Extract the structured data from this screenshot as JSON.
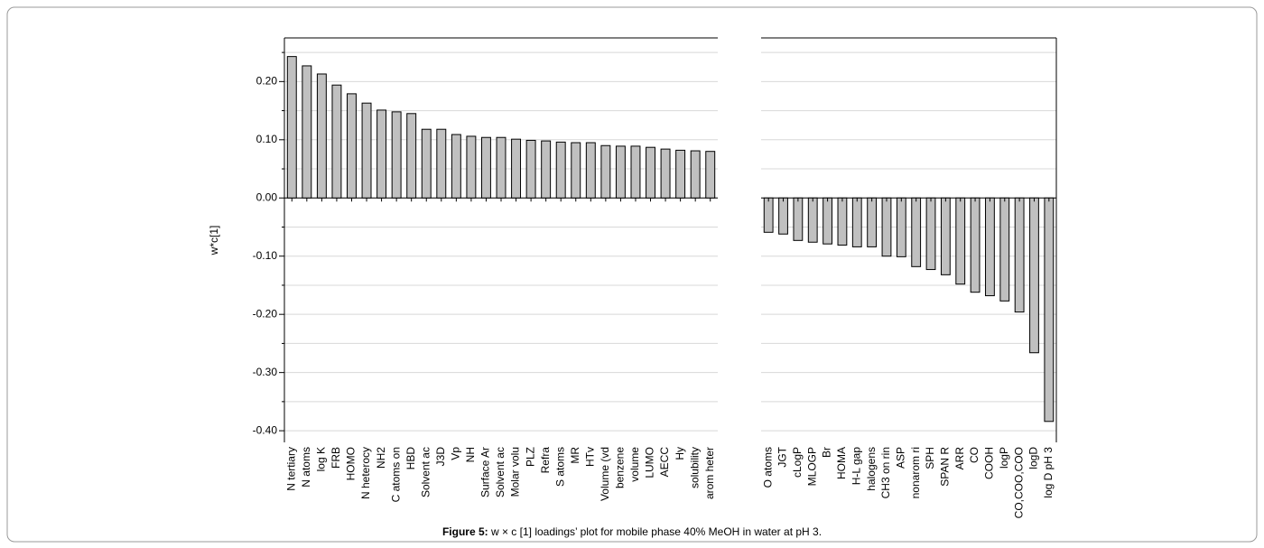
{
  "chart_data": {
    "type": "bar",
    "ylabel": "w*c[1]",
    "caption_label": "Figure 5:",
    "caption": "w × c [1] loadings’ plot for mobile phase 40% MeOH in water at pH 3.",
    "ylim": [
      -0.42,
      0.275
    ],
    "yticks": [
      {
        "value": 0.2,
        "label": "0.20"
      },
      {
        "value": 0.1,
        "label": "0.10"
      },
      {
        "value": 0,
        "label": "0.00"
      },
      {
        "value": -0.1,
        "label": "-0.10"
      },
      {
        "value": -0.2,
        "label": "-0.20"
      },
      {
        "value": -0.3,
        "label": "-0.30"
      },
      {
        "value": -0.4,
        "label": "-0.40"
      }
    ],
    "minor_yticks": [
      0.25,
      0.15,
      0.05,
      -0.05,
      -0.15,
      -0.25,
      -0.35
    ],
    "grid": true,
    "color": "#c0c0c0",
    "panels": [
      {
        "categories": [
          "N tertiary",
          "N atoms",
          "log K",
          "FRB",
          "HOMO",
          "N heterocy",
          "NH2",
          "C atoms on",
          "HBD",
          "Solvent ac",
          "J3D",
          "Vp",
          "NH",
          "Surface Ar",
          "Solvent ac",
          "Molar volu",
          "PLZ",
          "Refra",
          "S atoms",
          "MR",
          "HTv",
          "Volume (vd",
          "benzene",
          "volume",
          "LUMO",
          "AECC",
          "Hy",
          "solubility",
          "arom heter"
        ],
        "values": [
          0.243,
          0.227,
          0.213,
          0.194,
          0.179,
          0.163,
          0.151,
          0.148,
          0.145,
          0.118,
          0.118,
          0.109,
          0.106,
          0.104,
          0.104,
          0.101,
          0.099,
          0.098,
          0.096,
          0.095,
          0.095,
          0.09,
          0.089,
          0.089,
          0.087,
          0.084,
          0.082,
          0.081,
          0.08
        ]
      },
      {
        "categories": [
          "O atoms",
          "JGT",
          "cLogP",
          "MLOGP",
          "Br",
          "HOMA",
          "H-L gap",
          "halogens",
          "CH3 on rin",
          "ASP",
          "nonarom ri",
          "SPH",
          "SPAN R",
          "ARR",
          "CO",
          "COOH",
          "logP",
          "CO,COO,COO",
          "logD",
          "log D pH 3"
        ],
        "values": [
          -0.059,
          -0.062,
          -0.073,
          -0.076,
          -0.079,
          -0.081,
          -0.084,
          -0.084,
          -0.1,
          -0.101,
          -0.118,
          -0.123,
          -0.132,
          -0.148,
          -0.162,
          -0.168,
          -0.177,
          -0.196,
          -0.266,
          -0.384
        ]
      }
    ]
  }
}
